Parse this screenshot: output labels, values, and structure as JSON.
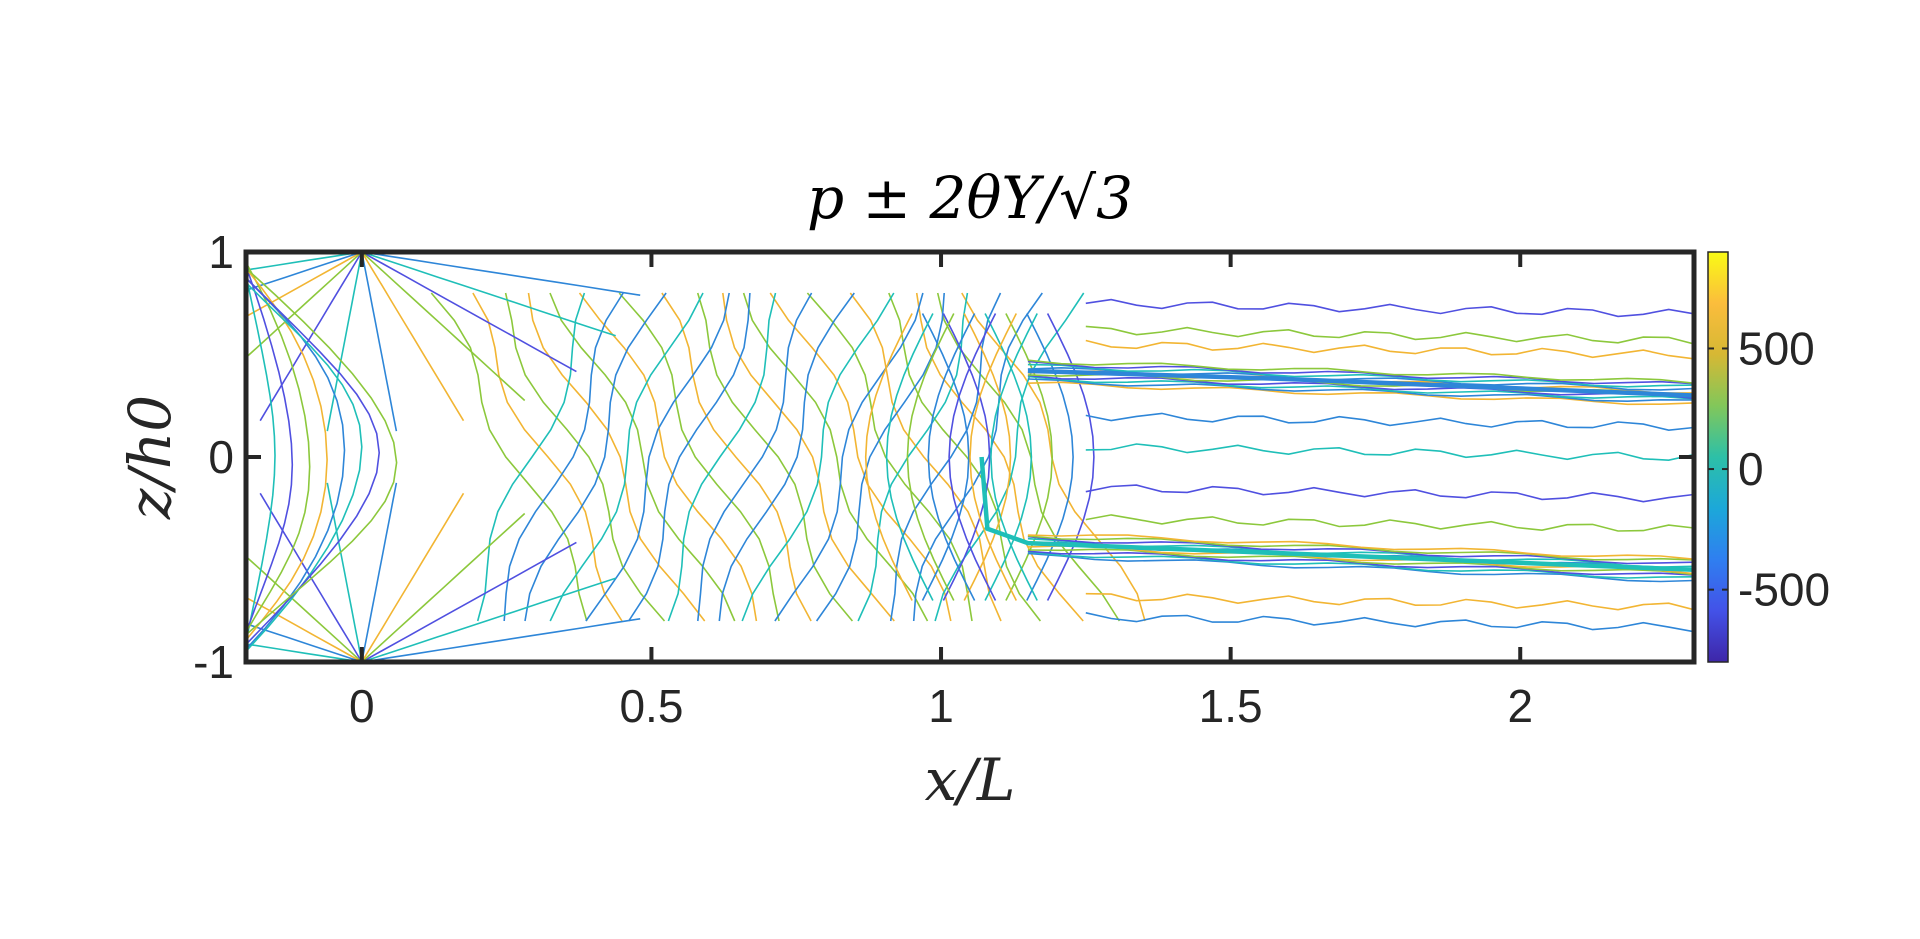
{
  "chart_data": {
    "type": "contour",
    "title": "p ± 2θY/√3",
    "xlabel": "x/L",
    "ylabel": "z/h0",
    "xlim": [
      -0.2,
      2.3
    ],
    "ylim": [
      -1,
      1
    ],
    "xticks": [
      0,
      0.5,
      1,
      1.5,
      2
    ],
    "xtick_labels": [
      "0",
      "0.5",
      "1",
      "1.5",
      "2"
    ],
    "yticks": [
      -1,
      0,
      1
    ],
    "ytick_labels": [
      "-1",
      "0",
      "1"
    ],
    "colorbar": {
      "range": [
        -800,
        900
      ],
      "ticks": [
        -500,
        0,
        500
      ],
      "tick_labels": [
        "-500",
        "0",
        "500"
      ],
      "colormap": [
        "#3e26a8",
        "#4352e8",
        "#2f7ff0",
        "#1ca8d9",
        "#2dc0a7",
        "#82c75a",
        "#d6b834",
        "#fbbd3c",
        "#f9fb15"
      ]
    },
    "colors": {
      "axis": "#262626",
      "family_a": "#f2b533",
      "family_b": "#2e86d8",
      "family_c": "#1fbfb8",
      "family_d": "#5050e0",
      "family_e": "#8cc83c"
    }
  }
}
